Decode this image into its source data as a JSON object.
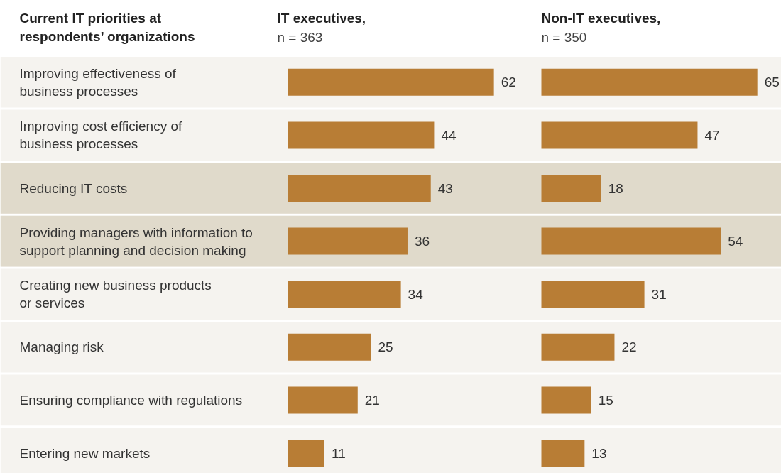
{
  "chart_data": [
    {
      "type": "bar",
      "orientation": "horizontal",
      "title": "IT executives,",
      "subtitle": "n = 363",
      "ylabel": "Current IT priorities at\nrespondents’ organizations",
      "categories": [
        "Improving effectiveness of\nbusiness processes",
        "Improving cost efficiency of\nbusiness processes",
        "Reducing IT costs",
        "Providing managers with information to\nsupport planning and decision making",
        "Creating new business products\nor services",
        "Managing risk",
        "Ensuring compliance with regulations",
        "Entering new markets"
      ],
      "values": [
        62,
        44,
        43,
        36,
        34,
        25,
        21,
        11
      ],
      "color": "#b87d35",
      "data_labels": true,
      "bands": [
        {
          "axis": "y",
          "from": "Reducing IT costs",
          "to": "Reducing IT costs",
          "color": "#e0dacb"
        },
        {
          "axis": "y",
          "from": "Providing managers with information to\nsupport planning and decision making",
          "to": "Providing managers with information to\nsupport planning and decision making",
          "color": "#e0dacb"
        }
      ]
    },
    {
      "type": "bar",
      "orientation": "horizontal",
      "title": "Non-IT executives,",
      "subtitle": "n = 350",
      "tick_labels": false,
      "categories": [
        "Improving effectiveness of\nbusiness processes",
        "Improving cost efficiency of\nbusiness processes",
        "Reducing IT costs",
        "Providing managers with information to\nsupport planning and decision making",
        "Creating new business products\nor services",
        "Managing risk",
        "Ensuring compliance with regulations",
        "Entering new markets"
      ],
      "values": [
        65,
        47,
        18,
        54,
        31,
        22,
        15,
        13
      ],
      "color": "#b87d35",
      "data_labels": true,
      "bands": [
        {
          "axis": "y",
          "from": "Reducing IT costs",
          "to": "Reducing IT costs",
          "color": "#e0dacb"
        },
        {
          "axis": "y",
          "from": "Providing managers with information to\nsupport planning and decision making",
          "to": "Providing managers with information to\nsupport planning and decision making",
          "color": "#e0dacb"
        }
      ]
    }
  ]
}
